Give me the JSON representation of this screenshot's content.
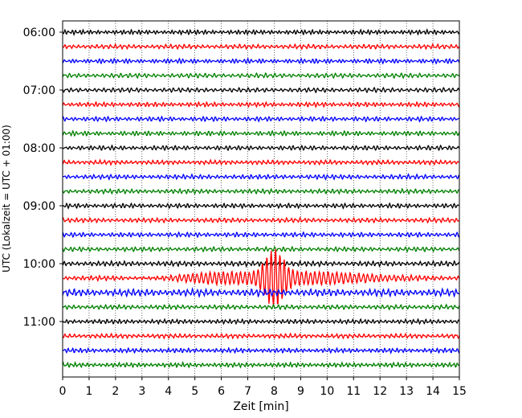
{
  "chart_data": {
    "type": "line",
    "title": "",
    "xlabel": "Zeit  [min]",
    "ylabel": "UTC (Lokalzeit = UTC + 01:00)",
    "xlim": [
      0,
      15
    ],
    "x_ticks": [
      "0",
      "1",
      "2",
      "3",
      "4",
      "5",
      "6",
      "7",
      "8",
      "9",
      "10",
      "11",
      "12",
      "13",
      "14",
      "15"
    ],
    "y_tick_labels": [
      "06:00",
      "07:00",
      "08:00",
      "09:00",
      "10:00",
      "11:00"
    ],
    "grid": "vertical dotted",
    "trace_interval_minutes": 15,
    "trace_colors": [
      "#000000",
      "#ff0000",
      "#0000ff",
      "#008000"
    ],
    "traces": [
      {
        "start": "06:00",
        "color": "#000000",
        "amplitude": 0.18
      },
      {
        "start": "06:15",
        "color": "#ff0000",
        "amplitude": 0.18
      },
      {
        "start": "06:30",
        "color": "#0000ff",
        "amplitude": 0.18
      },
      {
        "start": "06:45",
        "color": "#008000",
        "amplitude": 0.18
      },
      {
        "start": "07:00",
        "color": "#000000",
        "amplitude": 0.18
      },
      {
        "start": "07:15",
        "color": "#ff0000",
        "amplitude": 0.18
      },
      {
        "start": "07:30",
        "color": "#0000ff",
        "amplitude": 0.18
      },
      {
        "start": "07:45",
        "color": "#008000",
        "amplitude": 0.18
      },
      {
        "start": "08:00",
        "color": "#000000",
        "amplitude": 0.18
      },
      {
        "start": "08:15",
        "color": "#ff0000",
        "amplitude": 0.18
      },
      {
        "start": "08:30",
        "color": "#0000ff",
        "amplitude": 0.18
      },
      {
        "start": "08:45",
        "color": "#008000",
        "amplitude": 0.18
      },
      {
        "start": "09:00",
        "color": "#000000",
        "amplitude": 0.18
      },
      {
        "start": "09:15",
        "color": "#ff0000",
        "amplitude": 0.18
      },
      {
        "start": "09:30",
        "color": "#0000ff",
        "amplitude": 0.18
      },
      {
        "start": "09:45",
        "color": "#008000",
        "amplitude": 0.18
      },
      {
        "start": "10:00",
        "color": "#000000",
        "amplitude": 0.2
      },
      {
        "start": "10:15",
        "color": "#ff0000",
        "amplitude": 0.2,
        "event": {
          "onset_min": 2.2,
          "peak_min": 8.0,
          "end_min": 13.8,
          "peak_amplitude": 1.6
        }
      },
      {
        "start": "10:30",
        "color": "#0000ff",
        "amplitude": 0.28
      },
      {
        "start": "10:45",
        "color": "#008000",
        "amplitude": 0.18
      },
      {
        "start": "11:00",
        "color": "#000000",
        "amplitude": 0.18
      },
      {
        "start": "11:15",
        "color": "#ff0000",
        "amplitude": 0.18
      },
      {
        "start": "11:30",
        "color": "#0000ff",
        "amplitude": 0.18
      },
      {
        "start": "11:45",
        "color": "#008000",
        "amplitude": 0.18
      }
    ]
  }
}
